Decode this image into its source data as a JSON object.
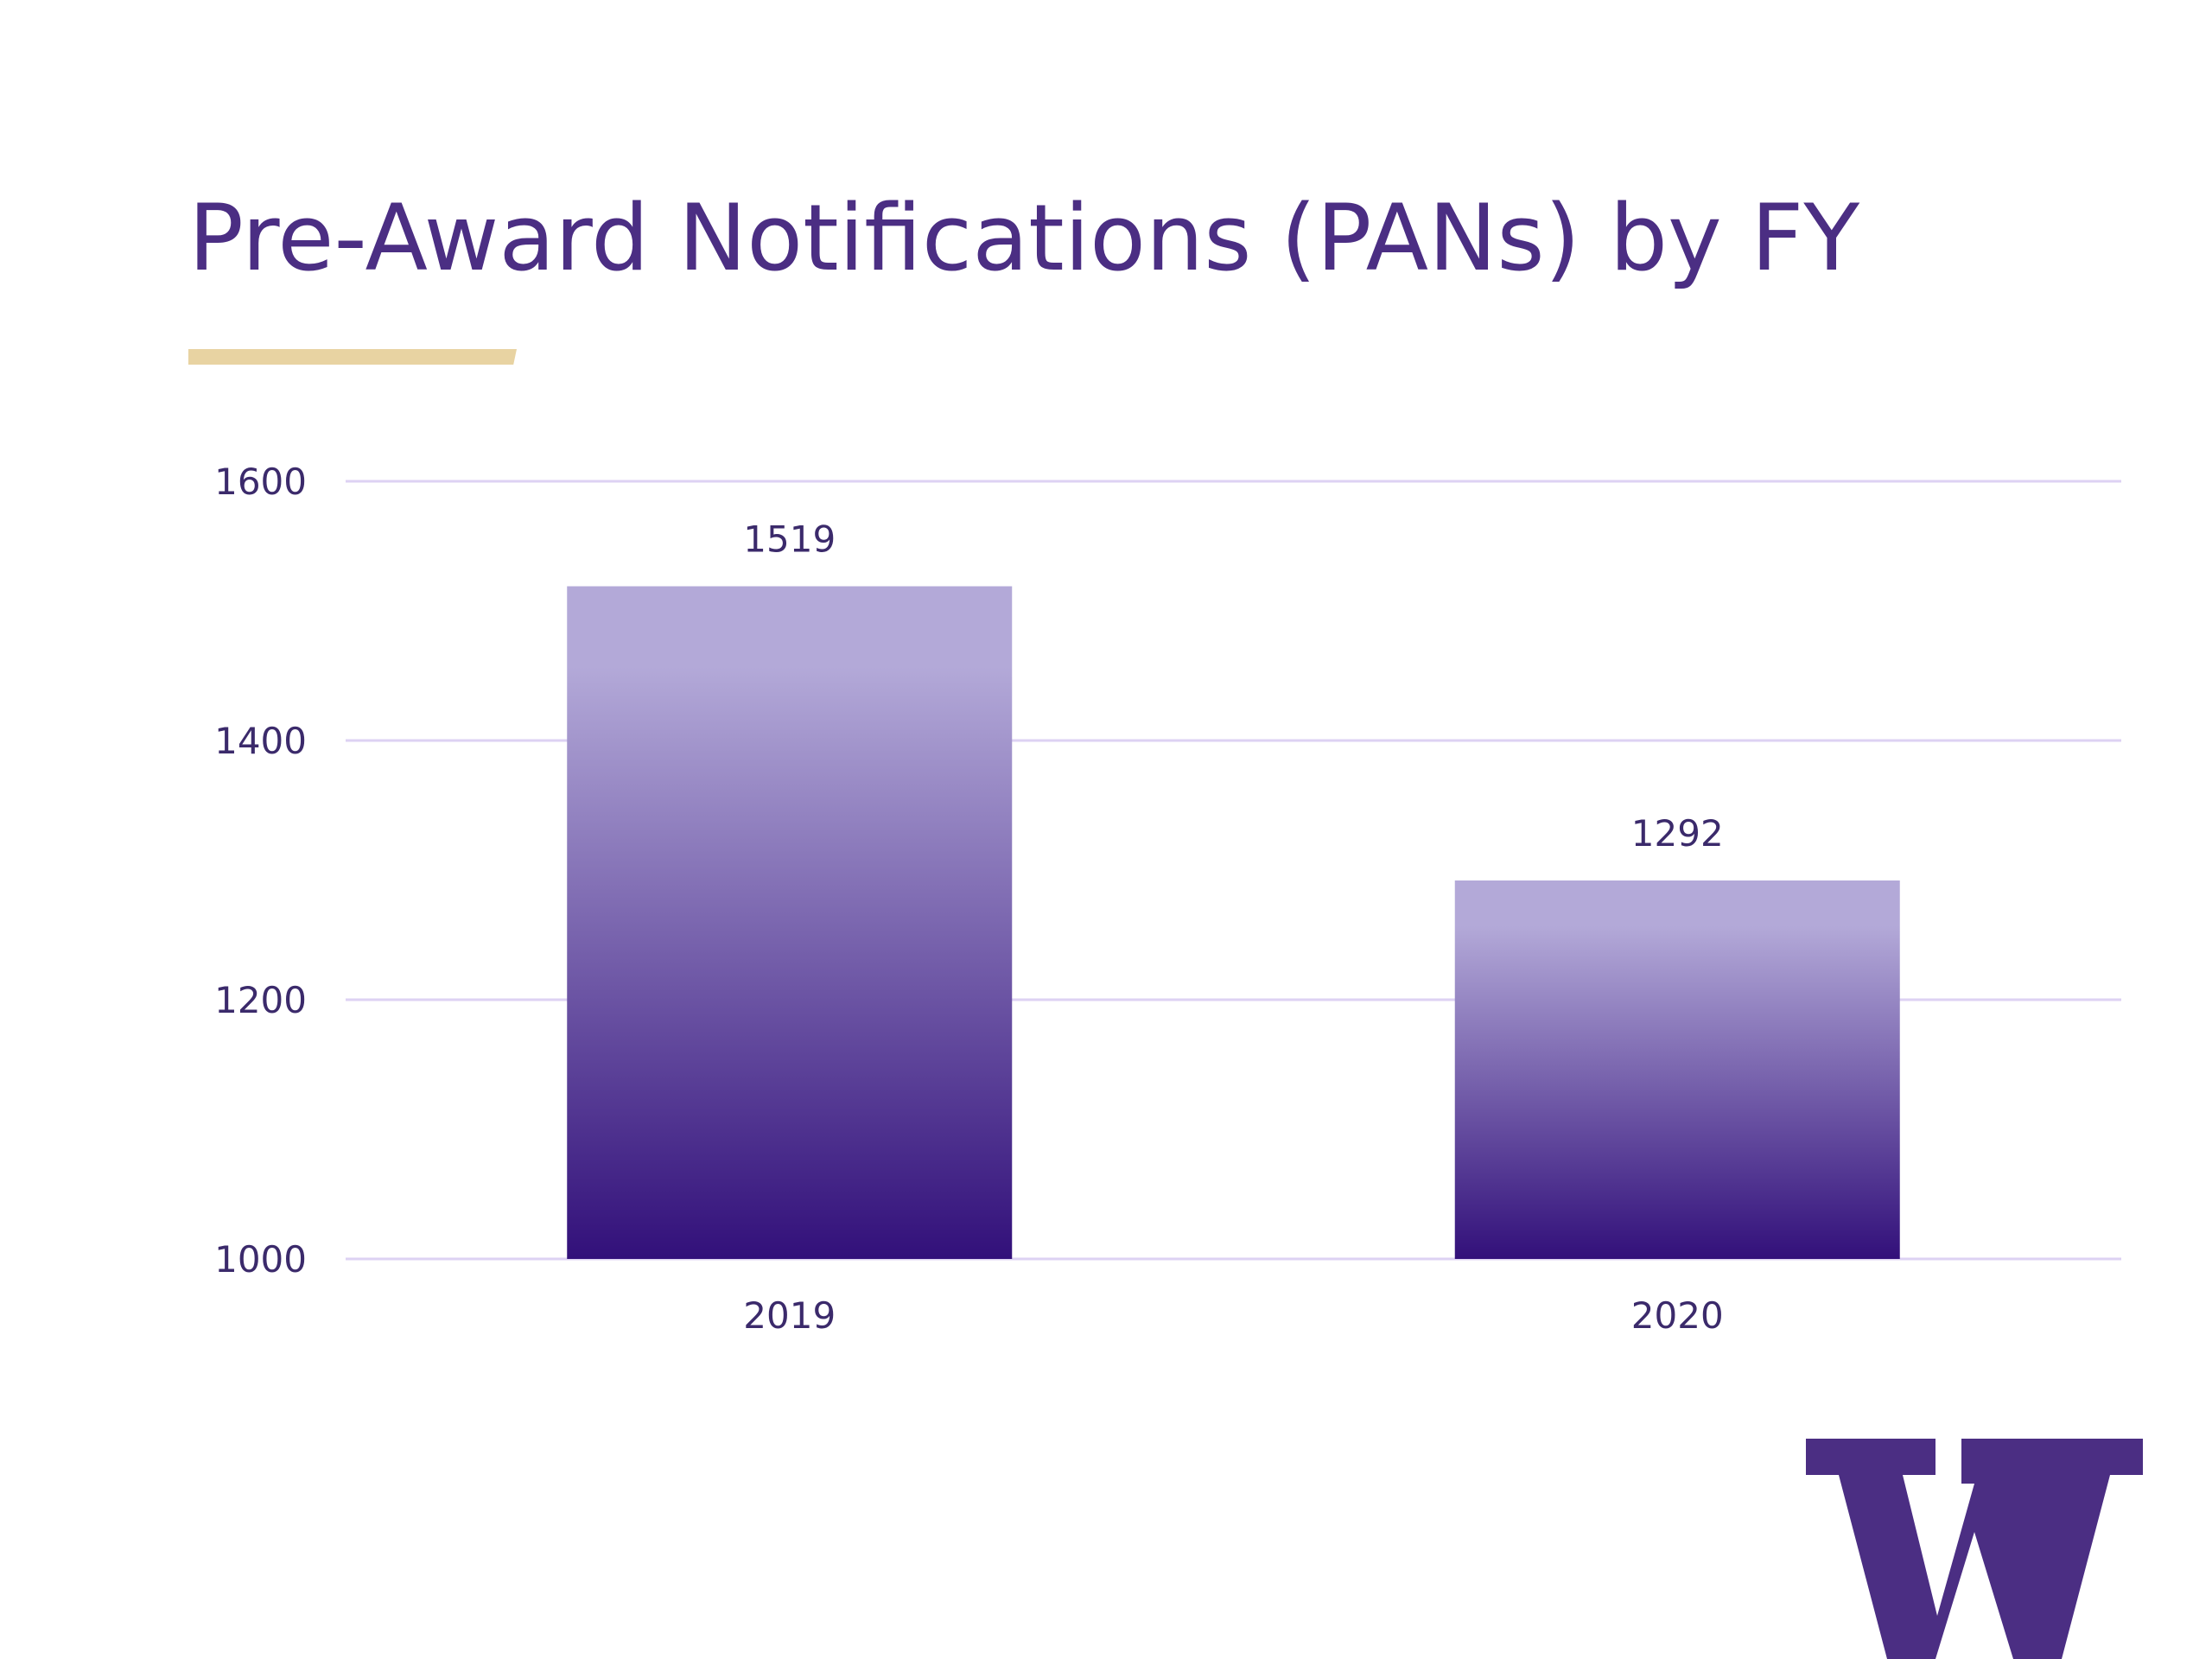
{
  "slide": {
    "title": "Pre-Award Notifications (PANs) by FY"
  },
  "colors": {
    "title": "#4b2e83",
    "accent_underline": "#e8d3a2",
    "gridline": "#ddd2f3",
    "bar_top": "#b3a9d8",
    "bar_bottom": "#32107a",
    "axis_text": "#3b2a6b",
    "logo": "#4b2e83"
  },
  "logo": {
    "icon": "university-w-logo-icon"
  },
  "chart_data": {
    "type": "bar",
    "title": "Pre-Award Notifications (PANs) by FY",
    "categories": [
      "2019",
      "2020"
    ],
    "values": [
      1519,
      1292
    ],
    "data_labels": [
      "1519",
      "1292"
    ],
    "xlabel": "",
    "ylabel": "",
    "ylim": [
      1000,
      1600
    ],
    "yticks": [
      1600,
      1400,
      1200,
      1000
    ],
    "ytick_labels": [
      "1600",
      "1400",
      "1200",
      "1000"
    ],
    "grid": true,
    "legend": "none"
  }
}
